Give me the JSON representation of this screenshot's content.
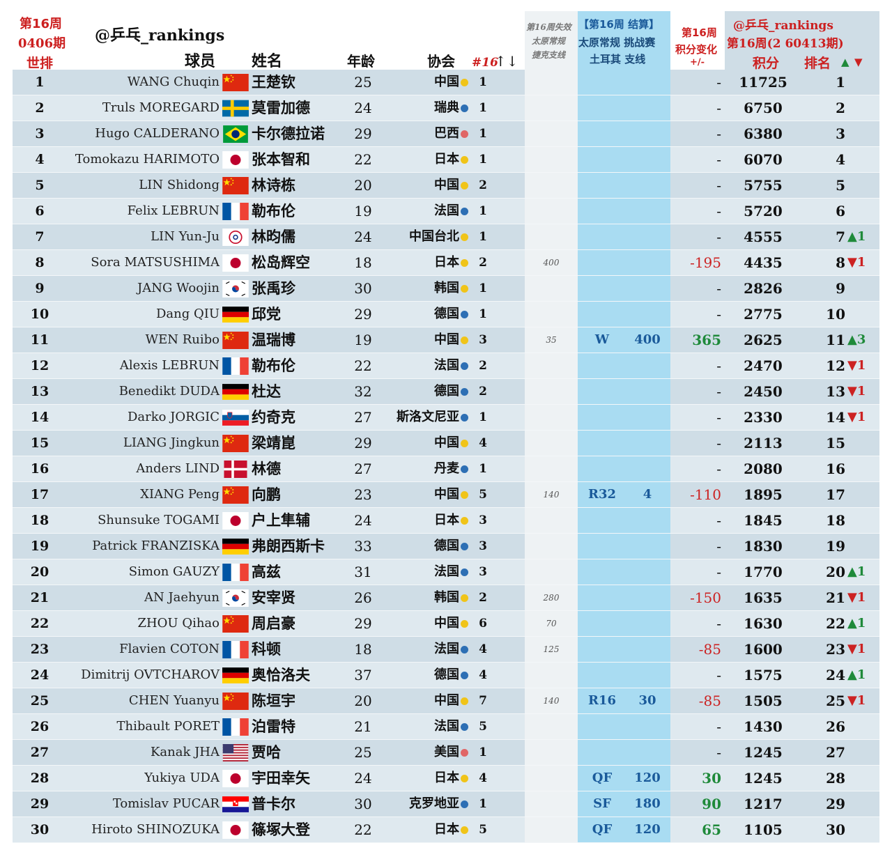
{
  "header": {
    "title_week": "第16周",
    "title_issue": "0406期",
    "title_world": "世排",
    "handle": "@乒乓_rankings",
    "col_player": "球员",
    "col_name": "姓名",
    "col_age": "年龄",
    "col_assoc": "协会",
    "col_no": "#16",
    "col_no_arrows": "↑↓",
    "lost_title": "第16周失效",
    "lost_sub1": "太原常规",
    "lost_sub2": "捷克支线",
    "settle_title": "【第16周 结算】",
    "settle_sub1": "太原常规 挑战赛",
    "settle_sub2": "土耳其 支线",
    "change_title": "第16周",
    "change_sub": "积分变化",
    "change_sign": "+/-",
    "right_handle": "@乒乓_rankings",
    "right_issue": "第16周(2 60413期)",
    "col_points": "积分",
    "col_rank": "排名",
    "up_arrow": "▲",
    "down_arrow": "▼"
  },
  "colors": {
    "cn": "#f0c419",
    "eu": "#2d6fb4",
    "am": "#e06666",
    "accent_red": "#cc1f1f",
    "settle_blue": "#a9dcf2"
  },
  "rows": [
    {
      "wr": "1",
      "en": "WANG Chuqin",
      "flag": "cn",
      "cn": "王楚钦",
      "age": "25",
      "assoc": "中国",
      "dot": "yellow",
      "n16": "1",
      "lost": "",
      "round": "",
      "spts": "",
      "chg": "-",
      "chg_type": "none",
      "pts": "11725",
      "rk": "1",
      "mv": "",
      "mv_type": ""
    },
    {
      "wr": "2",
      "en": "Truls MOREGARD",
      "flag": "se",
      "cn": "莫雷加德",
      "age": "24",
      "assoc": "瑞典",
      "dot": "blue",
      "n16": "1",
      "lost": "",
      "round": "",
      "spts": "",
      "chg": "-",
      "chg_type": "none",
      "pts": "6750",
      "rk": "2",
      "mv": "",
      "mv_type": ""
    },
    {
      "wr": "3",
      "en": "Hugo CALDERANO",
      "flag": "br",
      "cn": "卡尔德拉诺",
      "age": "29",
      "assoc": "巴西",
      "dot": "pink",
      "n16": "1",
      "lost": "",
      "round": "",
      "spts": "",
      "chg": "-",
      "chg_type": "none",
      "pts": "6380",
      "rk": "3",
      "mv": "",
      "mv_type": ""
    },
    {
      "wr": "4",
      "en": "Tomokazu HARIMOTO",
      "flag": "jp",
      "cn": "张本智和",
      "age": "22",
      "assoc": "日本",
      "dot": "yellow",
      "n16": "1",
      "lost": "",
      "round": "",
      "spts": "",
      "chg": "-",
      "chg_type": "none",
      "pts": "6070",
      "rk": "4",
      "mv": "",
      "mv_type": ""
    },
    {
      "wr": "5",
      "en": "LIN Shidong",
      "flag": "cn",
      "cn": "林诗栋",
      "age": "20",
      "assoc": "中国",
      "dot": "yellow",
      "n16": "2",
      "lost": "",
      "round": "",
      "spts": "",
      "chg": "-",
      "chg_type": "none",
      "pts": "5755",
      "rk": "5",
      "mv": "",
      "mv_type": ""
    },
    {
      "wr": "6",
      "en": "Felix LEBRUN",
      "flag": "fr",
      "cn": "勒布伦",
      "age": "19",
      "assoc": "法国",
      "dot": "blue",
      "n16": "1",
      "lost": "",
      "round": "",
      "spts": "",
      "chg": "-",
      "chg_type": "none",
      "pts": "5720",
      "rk": "6",
      "mv": "",
      "mv_type": ""
    },
    {
      "wr": "7",
      "en": "LIN Yun-Ju",
      "flag": "tpe",
      "cn": "林昀儒",
      "age": "24",
      "assoc": "中国台北",
      "dot": "yellow",
      "n16": "1",
      "lost": "",
      "round": "",
      "spts": "",
      "chg": "-",
      "chg_type": "none",
      "pts": "4555",
      "rk": "7",
      "mv": "▲1",
      "mv_type": "up"
    },
    {
      "wr": "8",
      "en": "Sora MATSUSHIMA",
      "flag": "jp",
      "cn": "松岛辉空",
      "age": "18",
      "assoc": "日本",
      "dot": "yellow",
      "n16": "2",
      "lost": "400",
      "round": "",
      "spts": "",
      "chg": "-195",
      "chg_type": "neg",
      "pts": "4435",
      "rk": "8",
      "mv": "▼1",
      "mv_type": "down"
    },
    {
      "wr": "9",
      "en": "JANG Woojin",
      "flag": "kr",
      "cn": "张禹珍",
      "age": "30",
      "assoc": "韩国",
      "dot": "yellow",
      "n16": "1",
      "lost": "",
      "round": "",
      "spts": "",
      "chg": "-",
      "chg_type": "none",
      "pts": "2826",
      "rk": "9",
      "mv": "",
      "mv_type": ""
    },
    {
      "wr": "10",
      "en": "Dang QIU",
      "flag": "de",
      "cn": "邱党",
      "age": "29",
      "assoc": "德国",
      "dot": "blue",
      "n16": "1",
      "lost": "",
      "round": "",
      "spts": "",
      "chg": "-",
      "chg_type": "none",
      "pts": "2775",
      "rk": "10",
      "mv": "",
      "mv_type": ""
    },
    {
      "wr": "11",
      "en": "WEN Ruibo",
      "flag": "cn",
      "cn": "温瑞博",
      "age": "19",
      "assoc": "中国",
      "dot": "yellow",
      "n16": "3",
      "lost": "35",
      "round": "W",
      "spts": "400",
      "chg": "365",
      "chg_type": "pos",
      "pts": "2625",
      "rk": "11",
      "mv": "▲3",
      "mv_type": "up"
    },
    {
      "wr": "12",
      "en": "Alexis LEBRUN",
      "flag": "fr",
      "cn": "勒布伦",
      "age": "22",
      "assoc": "法国",
      "dot": "blue",
      "n16": "2",
      "lost": "",
      "round": "",
      "spts": "",
      "chg": "-",
      "chg_type": "none",
      "pts": "2470",
      "rk": "12",
      "mv": "▼1",
      "mv_type": "down"
    },
    {
      "wr": "13",
      "en": "Benedikt DUDA",
      "flag": "de",
      "cn": "杜达",
      "age": "32",
      "assoc": "德国",
      "dot": "blue",
      "n16": "2",
      "lost": "",
      "round": "",
      "spts": "",
      "chg": "-",
      "chg_type": "none",
      "pts": "2450",
      "rk": "13",
      "mv": "▼1",
      "mv_type": "down"
    },
    {
      "wr": "14",
      "en": "Darko JORGIC",
      "flag": "si",
      "cn": "约奇克",
      "age": "27",
      "assoc": "斯洛文尼亚",
      "dot": "blue",
      "n16": "1",
      "lost": "",
      "round": "",
      "spts": "",
      "chg": "-",
      "chg_type": "none",
      "pts": "2330",
      "rk": "14",
      "mv": "▼1",
      "mv_type": "down"
    },
    {
      "wr": "15",
      "en": "LIANG Jingkun",
      "flag": "cn",
      "cn": "梁靖崑",
      "age": "29",
      "assoc": "中国",
      "dot": "yellow",
      "n16": "4",
      "lost": "",
      "round": "",
      "spts": "",
      "chg": "-",
      "chg_type": "none",
      "pts": "2113",
      "rk": "15",
      "mv": "",
      "mv_type": ""
    },
    {
      "wr": "16",
      "en": "Anders LIND",
      "flag": "dk",
      "cn": "林德",
      "age": "27",
      "assoc": "丹麦",
      "dot": "blue",
      "n16": "1",
      "lost": "",
      "round": "",
      "spts": "",
      "chg": "-",
      "chg_type": "none",
      "pts": "2080",
      "rk": "16",
      "mv": "",
      "mv_type": ""
    },
    {
      "wr": "17",
      "en": "XIANG Peng",
      "flag": "cn",
      "cn": "向鹏",
      "age": "23",
      "assoc": "中国",
      "dot": "yellow",
      "n16": "5",
      "lost": "140",
      "round": "R32",
      "spts": "4",
      "chg": "-110",
      "chg_type": "neg",
      "pts": "1895",
      "rk": "17",
      "mv": "",
      "mv_type": ""
    },
    {
      "wr": "18",
      "en": "Shunsuke TOGAMI",
      "flag": "jp",
      "cn": "户上隼辅",
      "age": "24",
      "assoc": "日本",
      "dot": "yellow",
      "n16": "3",
      "lost": "",
      "round": "",
      "spts": "",
      "chg": "-",
      "chg_type": "none",
      "pts": "1845",
      "rk": "18",
      "mv": "",
      "mv_type": ""
    },
    {
      "wr": "19",
      "en": "Patrick FRANZISKA",
      "flag": "de",
      "cn": "弗朗西斯卡",
      "age": "33",
      "assoc": "德国",
      "dot": "blue",
      "n16": "3",
      "lost": "",
      "round": "",
      "spts": "",
      "chg": "-",
      "chg_type": "none",
      "pts": "1830",
      "rk": "19",
      "mv": "",
      "mv_type": ""
    },
    {
      "wr": "20",
      "en": "Simon GAUZY",
      "flag": "fr",
      "cn": "高兹",
      "age": "31",
      "assoc": "法国",
      "dot": "blue",
      "n16": "3",
      "lost": "",
      "round": "",
      "spts": "",
      "chg": "-",
      "chg_type": "none",
      "pts": "1770",
      "rk": "20",
      "mv": "▲1",
      "mv_type": "up"
    },
    {
      "wr": "21",
      "en": "AN Jaehyun",
      "flag": "kr",
      "cn": "安宰贤",
      "age": "26",
      "assoc": "韩国",
      "dot": "yellow",
      "n16": "2",
      "lost": "280",
      "round": "",
      "spts": "",
      "chg": "-150",
      "chg_type": "neg",
      "pts": "1635",
      "rk": "21",
      "mv": "▼1",
      "mv_type": "down"
    },
    {
      "wr": "22",
      "en": "ZHOU Qihao",
      "flag": "cn",
      "cn": "周启豪",
      "age": "29",
      "assoc": "中国",
      "dot": "yellow",
      "n16": "6",
      "lost": "70",
      "round": "",
      "spts": "",
      "chg": "-",
      "chg_type": "none",
      "pts": "1630",
      "rk": "22",
      "mv": "▲1",
      "mv_type": "up"
    },
    {
      "wr": "23",
      "en": "Flavien COTON",
      "flag": "fr",
      "cn": "科顿",
      "age": "18",
      "assoc": "法国",
      "dot": "blue",
      "n16": "4",
      "lost": "125",
      "round": "",
      "spts": "",
      "chg": "-85",
      "chg_type": "neg",
      "pts": "1600",
      "rk": "23",
      "mv": "▼1",
      "mv_type": "down"
    },
    {
      "wr": "24",
      "en": "Dimitrij OVTCHAROV",
      "flag": "de",
      "cn": "奥恰洛夫",
      "age": "37",
      "assoc": "德国",
      "dot": "blue",
      "n16": "4",
      "lost": "",
      "round": "",
      "spts": "",
      "chg": "-",
      "chg_type": "none",
      "pts": "1575",
      "rk": "24",
      "mv": "▲1",
      "mv_type": "up"
    },
    {
      "wr": "25",
      "en": "CHEN Yuanyu",
      "flag": "cn",
      "cn": "陈垣宇",
      "age": "20",
      "assoc": "中国",
      "dot": "yellow",
      "n16": "7",
      "lost": "140",
      "round": "R16",
      "spts": "30",
      "chg": "-85",
      "chg_type": "neg",
      "pts": "1505",
      "rk": "25",
      "mv": "▼1",
      "mv_type": "down"
    },
    {
      "wr": "26",
      "en": "Thibault PORET",
      "flag": "fr",
      "cn": "泊雷特",
      "age": "21",
      "assoc": "法国",
      "dot": "blue",
      "n16": "5",
      "lost": "",
      "round": "",
      "spts": "",
      "chg": "-",
      "chg_type": "none",
      "pts": "1430",
      "rk": "26",
      "mv": "",
      "mv_type": ""
    },
    {
      "wr": "27",
      "en": "Kanak JHA",
      "flag": "us",
      "cn": "贾哈",
      "age": "25",
      "assoc": "美国",
      "dot": "pink",
      "n16": "1",
      "lost": "",
      "round": "",
      "spts": "",
      "chg": "-",
      "chg_type": "none",
      "pts": "1245",
      "rk": "27",
      "mv": "",
      "mv_type": ""
    },
    {
      "wr": "28",
      "en": "Yukiya UDA",
      "flag": "jp",
      "cn": "宇田幸矢",
      "age": "24",
      "assoc": "日本",
      "dot": "yellow",
      "n16": "4",
      "lost": "",
      "round": "QF",
      "spts": "120",
      "chg": "30",
      "chg_type": "pos",
      "pts": "1245",
      "rk": "28",
      "mv": "",
      "mv_type": ""
    },
    {
      "wr": "29",
      "en": "Tomislav PUCAR",
      "flag": "hr",
      "cn": "普卡尔",
      "age": "30",
      "assoc": "克罗地亚",
      "dot": "blue",
      "n16": "1",
      "lost": "",
      "round": "SF",
      "spts": "180",
      "chg": "90",
      "chg_type": "pos",
      "pts": "1217",
      "rk": "29",
      "mv": "",
      "mv_type": ""
    },
    {
      "wr": "30",
      "en": "Hiroto SHINOZUKA",
      "flag": "jp",
      "cn": "篠塚大登",
      "age": "22",
      "assoc": "日本",
      "dot": "yellow",
      "n16": "5",
      "lost": "",
      "round": "QF",
      "spts": "120",
      "chg": "65",
      "chg_type": "pos",
      "pts": "1105",
      "rk": "30",
      "mv": "",
      "mv_type": ""
    }
  ]
}
